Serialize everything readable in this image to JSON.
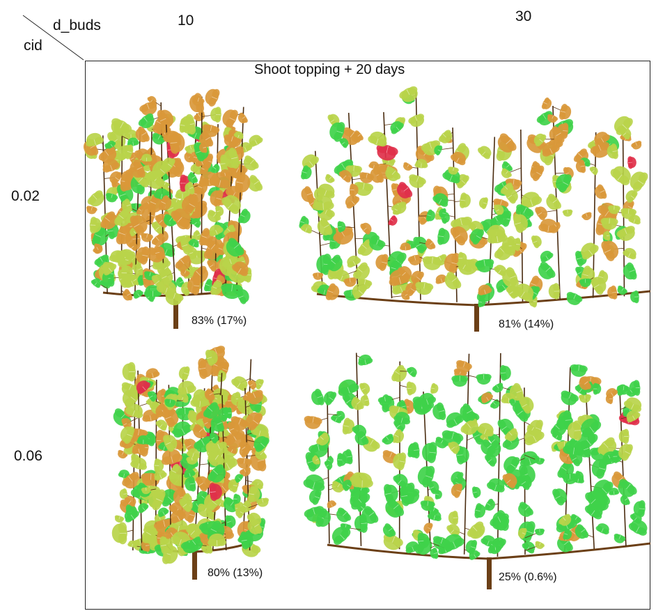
{
  "corner": {
    "col_header_label": "d_buds",
    "row_header_label": "cid"
  },
  "columns": [
    {
      "label": "10"
    },
    {
      "label": "30"
    }
  ],
  "rows": [
    {
      "label": "0.02"
    },
    {
      "label": "0.06"
    }
  ],
  "title": "Shoot topping + 20 days",
  "panels": [
    {
      "row": 0,
      "col": 0,
      "caption": "83% (17%)"
    },
    {
      "row": 0,
      "col": 1,
      "caption": "81% (14%)"
    },
    {
      "row": 1,
      "col": 0,
      "caption": "80% (13%)"
    },
    {
      "row": 1,
      "col": 1,
      "caption": "25% (0.6%)"
    }
  ],
  "colors": {
    "wood": "#6b3f16",
    "leaf_green": "#3fd24a",
    "leaf_yellow": "#b9d44a",
    "leaf_orange": "#d9983a",
    "leaf_red": "#e0304a"
  }
}
